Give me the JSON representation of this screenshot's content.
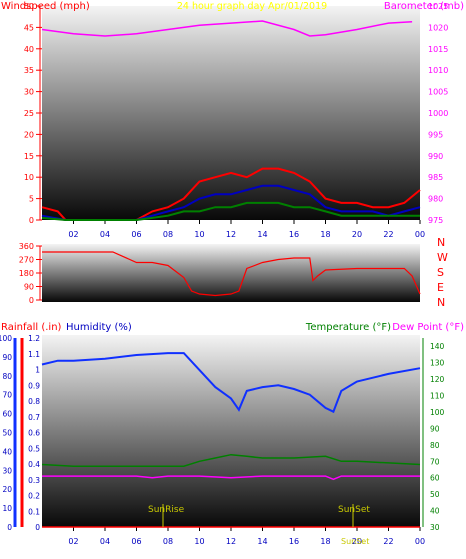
{
  "header": {
    "left_label": "Windspeed (mph)",
    "center_label": "24 hour graph day   Apr/01/2019",
    "right_label": "Barometer (mb)"
  },
  "colors": {
    "red": "#ff0000",
    "yellow": "#ffff00",
    "magenta": "#ff00ff",
    "blue": "#0000c0",
    "green": "#008000",
    "gold": "#c8c800",
    "line_blue": "#1030ff"
  },
  "chart_data": [
    {
      "type": "line",
      "x_ticks": [
        "02",
        "04",
        "06",
        "08",
        "10",
        "12",
        "14",
        "16",
        "18",
        "20",
        "22",
        "00"
      ],
      "y_left_ticks": [
        "0",
        "5",
        "10",
        "15",
        "20",
        "25",
        "30",
        "35",
        "40",
        "45",
        "50"
      ],
      "y_left_range": [
        0,
        50
      ],
      "y_right_ticks": [
        "975",
        "980",
        "985",
        "990",
        "995",
        "1000",
        "1005",
        "1010",
        "1015",
        "1020",
        "1025"
      ],
      "y_right_range": [
        975,
        1025
      ],
      "series": [
        {
          "name": "Barometer",
          "axis": "right",
          "color": "magenta",
          "x": [
            0,
            2,
            4,
            6,
            8,
            10,
            12,
            14,
            16,
            17,
            18,
            20,
            22,
            23.5
          ],
          "y": [
            1019.5,
            1018.5,
            1018,
            1018.5,
            1019.5,
            1020.5,
            1021,
            1021.5,
            1019.5,
            1018,
            1018.3,
            1019.5,
            1021,
            1021.3
          ]
        },
        {
          "name": "Wind gust",
          "axis": "left",
          "color": "red",
          "x": [
            0,
            1,
            1.5,
            3,
            6,
            7,
            8,
            9,
            10,
            11,
            12,
            13,
            14,
            15,
            16,
            17,
            18,
            19,
            20,
            21,
            22,
            23,
            24
          ],
          "y": [
            3,
            2,
            0,
            0,
            0,
            2,
            3,
            5,
            9,
            10,
            11,
            10,
            12,
            12,
            11,
            9,
            5,
            4,
            4,
            3,
            3,
            4,
            7
          ]
        },
        {
          "name": "Wind speed",
          "axis": "left",
          "color": "blue",
          "x": [
            0,
            1.5,
            3,
            6,
            7,
            8,
            9,
            10,
            11,
            12,
            13,
            14,
            15,
            16,
            17,
            18,
            19,
            20,
            21,
            22,
            23,
            24
          ],
          "y": [
            1,
            0,
            0,
            0,
            1,
            2,
            3,
            5,
            6,
            6,
            7,
            8,
            8,
            7,
            6,
            3,
            2,
            2,
            2,
            1,
            2,
            3
          ]
        },
        {
          "name": "Wind average",
          "axis": "left",
          "color": "green",
          "x": [
            0,
            1.5,
            3,
            6,
            7,
            8,
            9,
            10,
            11,
            12,
            13,
            14,
            15,
            16,
            17,
            18,
            19,
            20,
            21,
            22,
            23,
            24
          ],
          "y": [
            0.5,
            0,
            0,
            0,
            0.5,
            1,
            2,
            2,
            3,
            3,
            4,
            4,
            4,
            3,
            3,
            2,
            1,
            1,
            1,
            1,
            1,
            1
          ]
        }
      ]
    },
    {
      "type": "line",
      "x_ticks": [],
      "y_left_ticks": [
        "0",
        "90",
        "180",
        "270",
        "360"
      ],
      "y_left_range": [
        0,
        360
      ],
      "y_right_ticks": [
        "N",
        "E",
        "S",
        "W",
        "N"
      ],
      "series": [
        {
          "name": "Wind direction",
          "color": "red",
          "x": [
            0,
            3,
            4.5,
            6,
            7,
            8,
            9,
            9.5,
            10,
            11,
            12,
            12.5,
            13,
            14,
            15,
            16,
            17,
            17.2,
            17.5,
            18,
            20,
            22,
            23,
            23.5,
            24
          ],
          "y": [
            320,
            320,
            320,
            250,
            250,
            230,
            150,
            60,
            40,
            30,
            40,
            60,
            210,
            250,
            270,
            280,
            280,
            130,
            160,
            200,
            210,
            210,
            210,
            160,
            40
          ]
        }
      ]
    },
    {
      "type": "line",
      "x_ticks": [
        "02",
        "04",
        "06",
        "08",
        "10",
        "12",
        "14",
        "16",
        "18",
        "20",
        "22",
        "00"
      ],
      "y_rain_ticks": [
        "0",
        "0.1",
        "0.2",
        "0.3",
        "0.4",
        "0.5",
        "0.6",
        "0.7",
        "0.8",
        "0.9",
        "1",
        "1.1",
        "1.2"
      ],
      "y_rain_range": [
        0,
        1.2
      ],
      "y_hum_ticks": [
        "0",
        "10",
        "20",
        "30",
        "40",
        "50",
        "60",
        "70",
        "80",
        "90",
        "100"
      ],
      "y_hum_range": [
        0,
        100
      ],
      "y_temp_ticks": [
        "30",
        "40",
        "50",
        "60",
        "70",
        "80",
        "90",
        "100",
        "110",
        "120",
        "130",
        "140"
      ],
      "y_temp_range": [
        30,
        145
      ],
      "labels": {
        "rainfall": "Rainfall (.in)",
        "humidity": "Humidity (%)",
        "temperature": "Temperature (°F)",
        "dew_point": "Dew Point (°F)"
      },
      "annotations": {
        "sunrise": "SunRise",
        "sunset": "SunSet",
        "sunset_bottom": "SunSet"
      },
      "series": [
        {
          "name": "Humidity",
          "axis": "humidity",
          "color": "line_blue",
          "x": [
            0,
            1,
            2,
            4,
            6,
            8,
            9,
            10,
            11,
            12,
            12.5,
            13,
            14,
            15,
            16,
            17,
            18,
            18.5,
            19,
            20,
            22,
            24
          ],
          "y": [
            86,
            88,
            88,
            89,
            91,
            92,
            92,
            83,
            74,
            68,
            62,
            72,
            74,
            75,
            73,
            70,
            63,
            61,
            72,
            77,
            81,
            84
          ]
        },
        {
          "name": "Temperature",
          "axis": "temp",
          "color": "green",
          "x": [
            0,
            2,
            4,
            6,
            8,
            9,
            10,
            11,
            12,
            13,
            14,
            16,
            18,
            19,
            20,
            22,
            24
          ],
          "y": [
            68,
            67,
            67,
            67,
            67,
            67,
            70,
            72,
            74,
            73,
            72,
            72,
            73,
            70,
            70,
            69,
            68
          ]
        },
        {
          "name": "Dew Point",
          "axis": "temp",
          "color": "magenta",
          "x": [
            0,
            2,
            4,
            6,
            7,
            8,
            10,
            12,
            14,
            16,
            18,
            18.5,
            19,
            20,
            22,
            24
          ],
          "y": [
            61,
            61,
            61,
            61,
            60,
            61,
            61,
            60,
            61,
            61,
            61,
            59,
            61,
            61,
            61,
            61
          ]
        },
        {
          "name": "Rainfall",
          "axis": "rain",
          "color": "red",
          "x": [
            0,
            24
          ],
          "y": [
            0,
            0
          ]
        }
      ]
    }
  ]
}
